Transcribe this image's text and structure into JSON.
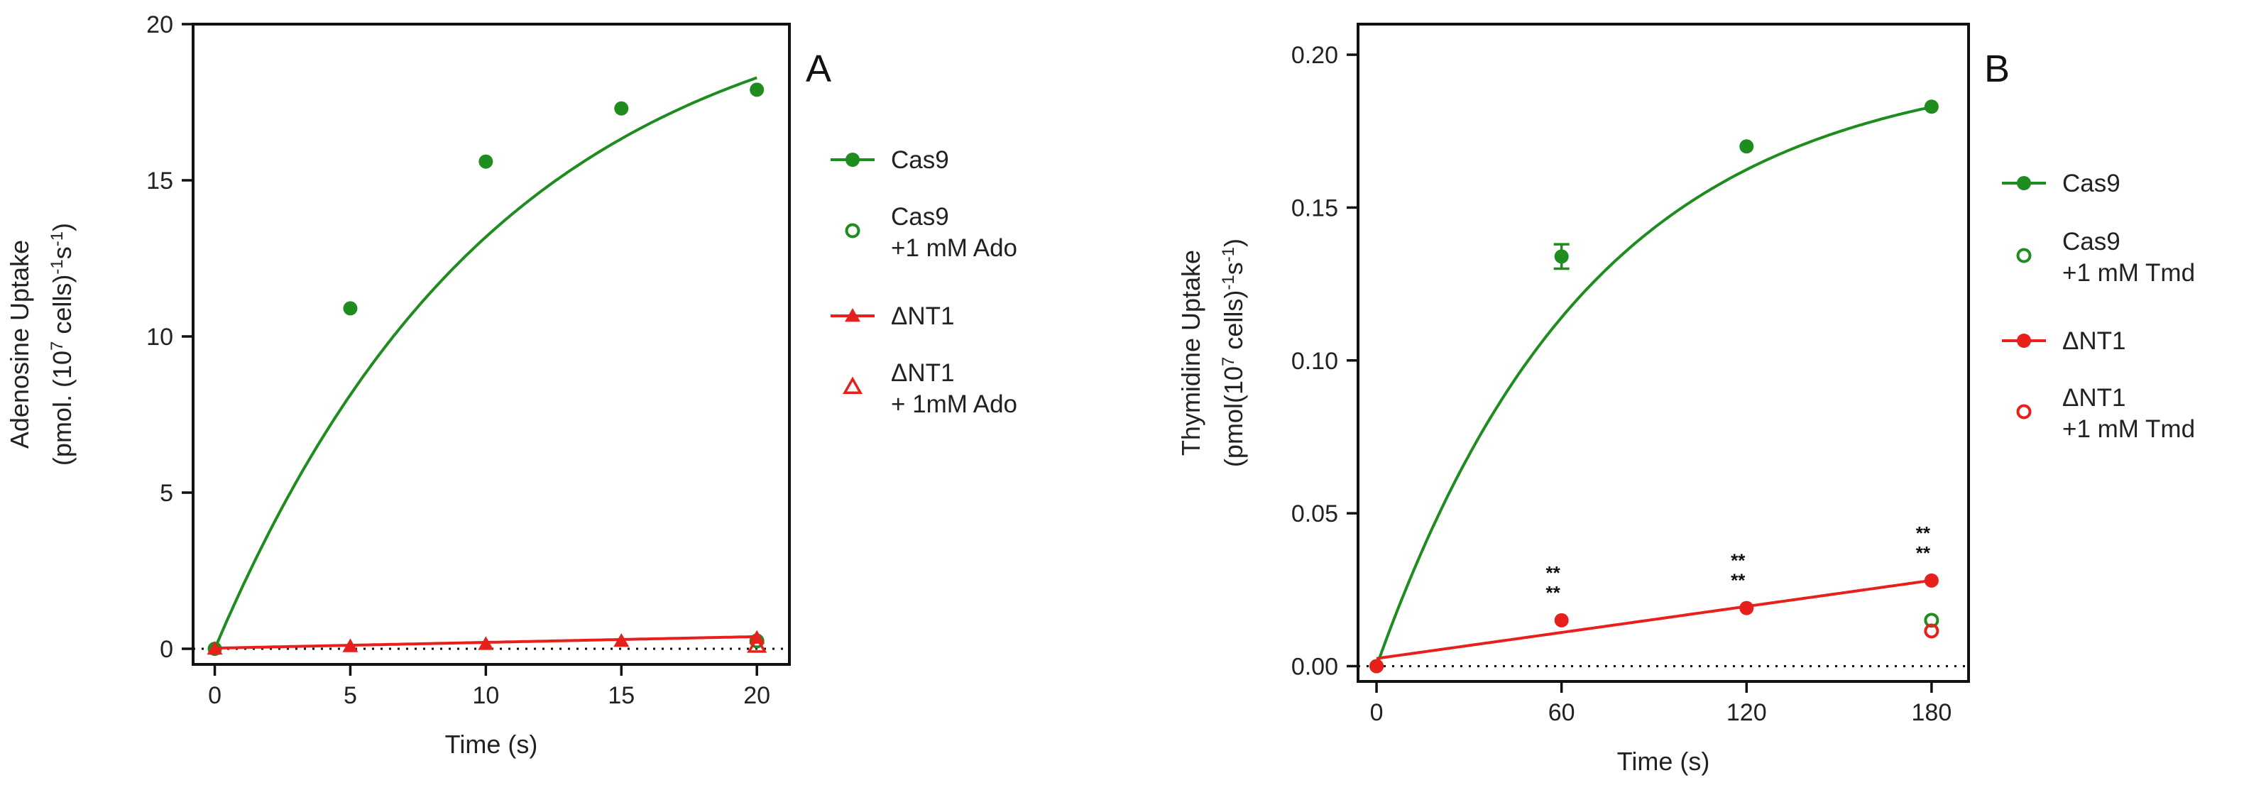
{
  "chart_data": [
    {
      "panel": "A",
      "type": "line",
      "xlabel": "Time (s)",
      "ylabel_line1": "Adenosine Uptake",
      "ylabel_line2_prefix": "(pmol. (10",
      "ylabel_sup1": "7",
      "ylabel_mid": " cells)",
      "ylabel_sup2": "-1",
      "ylabel_s": "s",
      "ylabel_sup3": "-1",
      "ylabel_end": ")",
      "xlim": [
        -0.8,
        21.2
      ],
      "ylim": [
        -0.5,
        20
      ],
      "xticks": [
        0,
        5,
        10,
        15,
        20
      ],
      "xtick_labels": [
        "0",
        "5",
        "10",
        "15",
        "20"
      ],
      "yticks": [
        0,
        5,
        10,
        15,
        20
      ],
      "ytick_labels": [
        "0",
        "5",
        "10",
        "15",
        "20"
      ],
      "baseline": 0,
      "series": [
        {
          "name": "Cas9",
          "color": "#1e8c1e",
          "marker": "circle-filled",
          "x": [
            0,
            5,
            10,
            15,
            20
          ],
          "y": [
            0,
            10.9,
            15.6,
            17.3,
            17.9
          ],
          "fit": {
            "model": "one-phase",
            "ymax": 21.5,
            "k": 0.095
          }
        },
        {
          "name": "Cas9",
          "name2": "+1 mM Ado",
          "color": "#1e8c1e",
          "marker": "circle-open",
          "x": [
            20
          ],
          "y": [
            0.25
          ]
        },
        {
          "name": "ΔNT1",
          "color": "#e8201c",
          "marker": "triangle-filled",
          "x": [
            0,
            5,
            10,
            15,
            20
          ],
          "y": [
            0,
            0.08,
            0.15,
            0.25,
            0.35
          ],
          "fit": {
            "model": "linear",
            "intercept": 0.02,
            "slope": 0.0185
          }
        },
        {
          "name": "ΔNT1",
          "name2": "+ 1mM Ado",
          "color": "#e8201c",
          "marker": "triangle-open",
          "x": [
            20
          ],
          "y": [
            0.1
          ]
        }
      ]
    },
    {
      "panel": "B",
      "type": "line",
      "xlabel": "Time (s)",
      "ylabel_line1": "Thymidine Uptake",
      "ylabel_line2_prefix": "(pmol(10",
      "ylabel_sup1": "7",
      "ylabel_mid": " cells)",
      "ylabel_sup2": "-1",
      "ylabel_s": "s",
      "ylabel_sup3": "-1",
      "ylabel_end": ")",
      "xlim": [
        -6,
        192
      ],
      "ylim": [
        -0.005,
        0.21
      ],
      "xticks": [
        0,
        60,
        120,
        180
      ],
      "xtick_labels": [
        "0",
        "60",
        "120",
        "180"
      ],
      "yticks": [
        0,
        0.05,
        0.1,
        0.15,
        0.2
      ],
      "ytick_labels": [
        "0.00",
        "0.05",
        "0.10",
        "0.15",
        "0.20"
      ],
      "baseline": 0,
      "series": [
        {
          "name": "Cas9",
          "color": "#1e8c1e",
          "marker": "circle-filled",
          "x": [
            0,
            60,
            120,
            180
          ],
          "y": [
            0,
            0.134,
            0.17,
            0.183
          ],
          "err": [
            0,
            0.004,
            0,
            0
          ],
          "fit": {
            "model": "one-phase",
            "ymax": 0.198,
            "k": 0.0143
          }
        },
        {
          "name": "Cas9",
          "name2": "+1 mM Tmd",
          "color": "#1e8c1e",
          "marker": "circle-open",
          "x": [
            180
          ],
          "y": [
            0.015
          ]
        },
        {
          "name": "ΔNT1",
          "color": "#e8201c",
          "marker": "circle-filled",
          "x": [
            0,
            60,
            120,
            180
          ],
          "y": [
            0,
            0.015,
            0.019,
            0.028
          ],
          "fit": {
            "model": "linear",
            "intercept": 0.0025,
            "slope": 0.000142
          }
        },
        {
          "name": "ΔNT1",
          "name2": "+1 mM Tmd",
          "color": "#e8201c",
          "marker": "circle-open",
          "x": [
            180
          ],
          "y": [
            0.0115
          ]
        }
      ],
      "annotations": [
        {
          "x": 60,
          "y": 0.015,
          "lines": [
            "**",
            "**"
          ]
        },
        {
          "x": 120,
          "y": 0.019,
          "lines": [
            "**",
            "**"
          ]
        },
        {
          "x": 180,
          "y": 0.028,
          "lines": [
            "**",
            "**"
          ]
        }
      ]
    }
  ]
}
